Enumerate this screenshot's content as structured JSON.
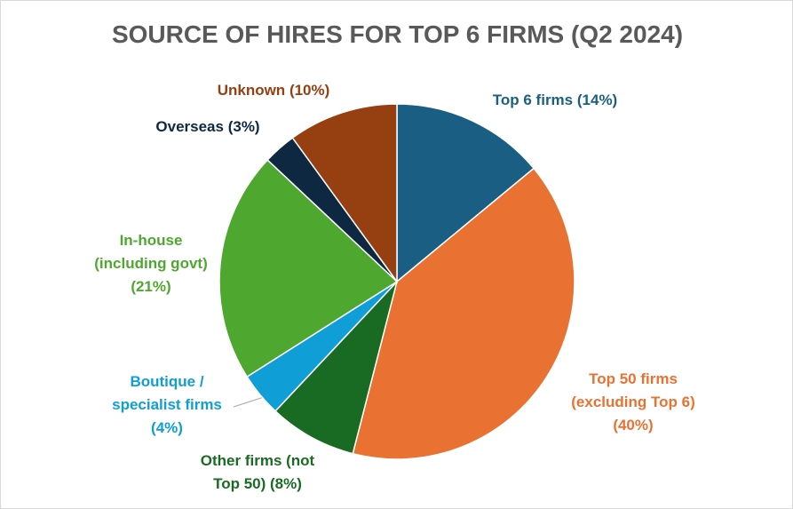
{
  "chart_data": {
    "type": "pie",
    "title": "SOURCE OF HIRES FOR TOP 6 FIRMS (Q2 2024)",
    "categories": [
      "Top 6 firms",
      "Top 50 firms (excluding Top 6)",
      "Other firms (not Top 50)",
      "Boutique / specialist firms",
      "In-house (including govt)",
      "Overseas",
      "Unknown"
    ],
    "values": [
      14,
      40,
      8,
      4,
      21,
      3,
      10
    ],
    "value_labels": [
      "(14%)",
      "(40%)",
      "(8%)",
      "(4%)",
      "(21%)",
      "(3%)",
      "(10%)"
    ],
    "colors": [
      "#1a5e83",
      "#e97132",
      "#196b24",
      "#0f9ed5",
      "#4ea72e",
      "#0e2841",
      "#963f11"
    ]
  }
}
